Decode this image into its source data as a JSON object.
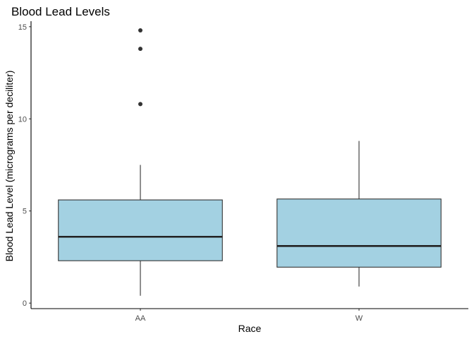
{
  "chart_data": {
    "type": "boxplot",
    "title": "Blood Lead Levels",
    "xlabel": "Race",
    "ylabel": "Blood Lead Level (micrograms per deciliter)",
    "categories": [
      "AA",
      "W"
    ],
    "ylim": [
      -0.3,
      15.3
    ],
    "yticks": [
      0,
      5,
      10,
      15
    ],
    "grid": false,
    "box_fill": "#a3d1e2",
    "boxes": [
      {
        "category": "AA",
        "min": 0.4,
        "q1": 2.3,
        "median": 3.6,
        "q3": 5.6,
        "max": 7.5,
        "outliers": [
          10.8,
          13.8,
          14.8
        ]
      },
      {
        "category": "W",
        "min": 0.9,
        "q1": 1.95,
        "median": 3.1,
        "q3": 5.65,
        "max": 8.8,
        "outliers": []
      }
    ]
  }
}
